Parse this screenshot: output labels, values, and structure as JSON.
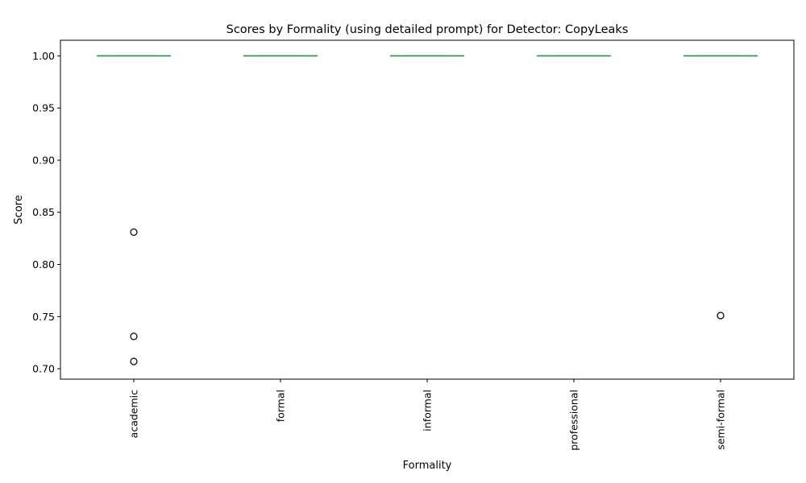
{
  "chart_data": {
    "type": "box",
    "title": "Scores by Formality (using detailed prompt) for Detector: CopyLeaks",
    "xlabel": "Formality",
    "ylabel": "Score",
    "ylim": [
      0.69,
      1.015
    ],
    "yticks": [
      "0.70",
      "0.75",
      "0.80",
      "0.85",
      "0.90",
      "0.95",
      "1.00"
    ],
    "categories": [
      "academic",
      "formal",
      "informal",
      "professional",
      "semi-formal"
    ],
    "boxes": [
      {
        "category": "academic",
        "min": 1.0,
        "q1": 1.0,
        "median": 1.0,
        "q3": 1.0,
        "max": 1.0,
        "outliers": [
          0.831,
          0.731,
          0.707
        ]
      },
      {
        "category": "formal",
        "min": 1.0,
        "q1": 1.0,
        "median": 1.0,
        "q3": 1.0,
        "max": 1.0,
        "outliers": []
      },
      {
        "category": "informal",
        "min": 1.0,
        "q1": 1.0,
        "median": 1.0,
        "q3": 1.0,
        "max": 1.0,
        "outliers": []
      },
      {
        "category": "professional",
        "min": 1.0,
        "q1": 1.0,
        "median": 1.0,
        "q3": 1.0,
        "max": 1.0,
        "outliers": []
      },
      {
        "category": "semi-formal",
        "min": 1.0,
        "q1": 1.0,
        "median": 1.0,
        "q3": 1.0,
        "max": 1.0,
        "outliers": [
          0.751
        ]
      }
    ],
    "grid": false,
    "legend": "none",
    "colors": {
      "box": "#1f77b4",
      "median": "#2ca02c",
      "whisker": "#1f77b4",
      "outlier": "#000000"
    }
  }
}
